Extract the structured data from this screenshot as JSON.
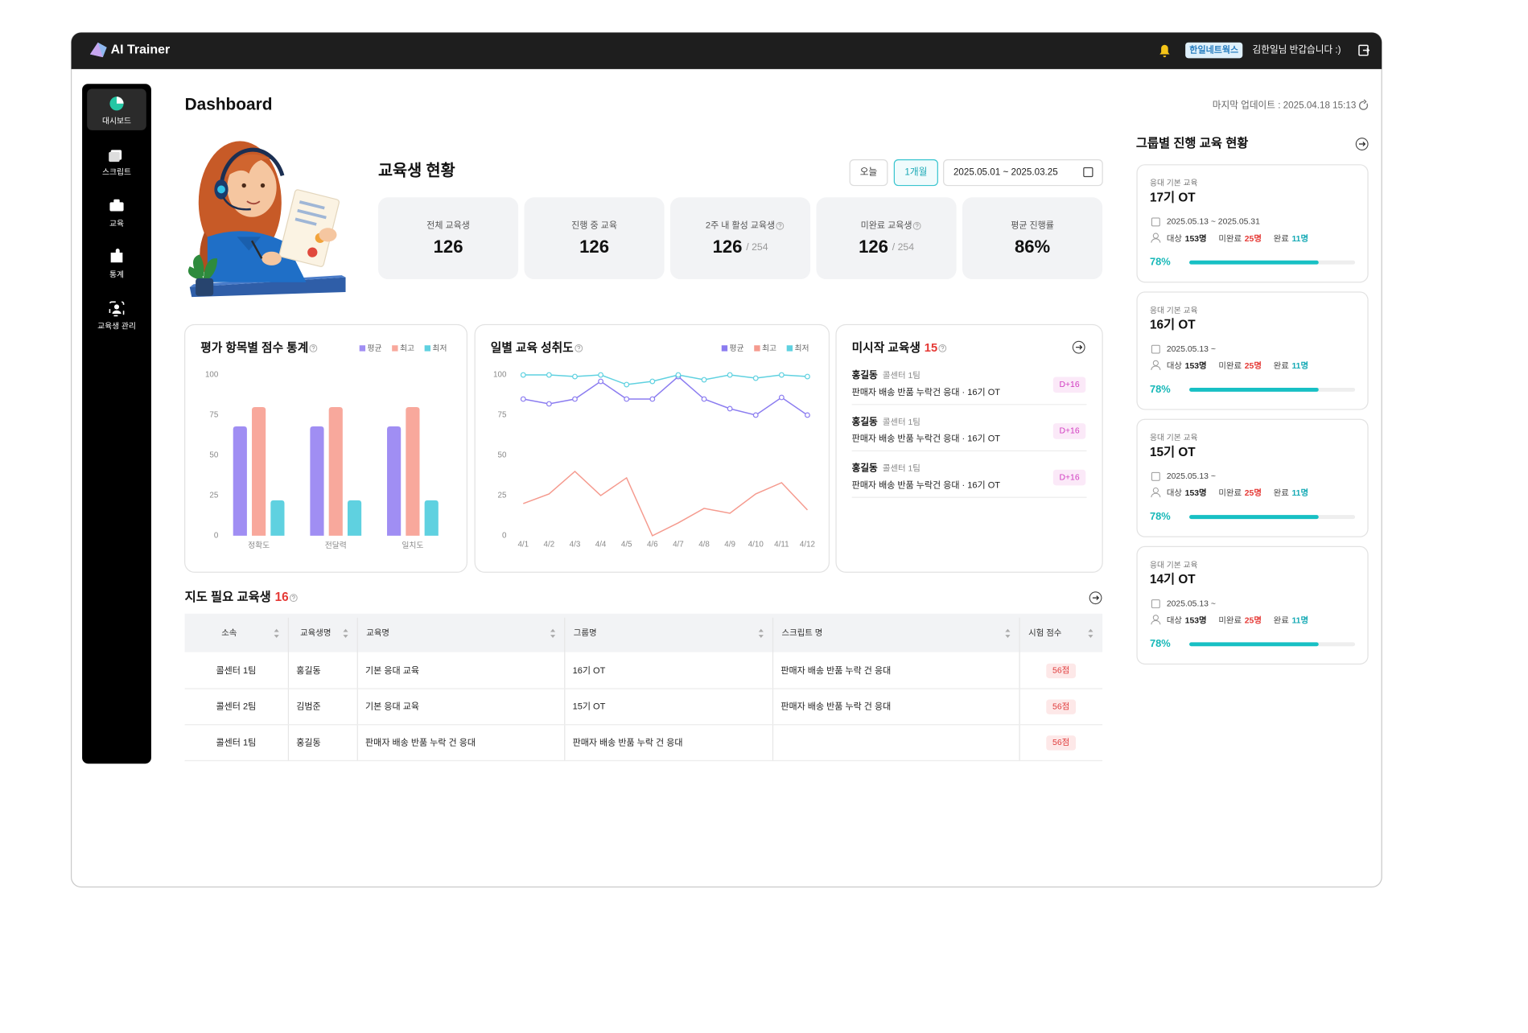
{
  "header": {
    "brand": "AI Trainer",
    "company": "한일네트웍스",
    "greeting": "김한일님 반갑습니다 :)"
  },
  "sidebar": {
    "items": [
      "대시보드",
      "스크립트",
      "교육",
      "통계",
      "교육생 관리"
    ]
  },
  "page": {
    "title": "Dashboard",
    "last_update": "마지막 업데이트 : 2025.04.18 15:13"
  },
  "status": {
    "title": "교육생 현황",
    "filters": [
      "오늘",
      "1개월"
    ],
    "date_range": "2025.05.01 ~ 2025.03.25",
    "cards": [
      {
        "label": "전체 교육생",
        "value": "126"
      },
      {
        "label": "진행 중 교육",
        "value": "126"
      },
      {
        "label": "2주 내 활성 교육생",
        "value": "126",
        "total": "/ 254"
      },
      {
        "label": "미완료 교육생",
        "value": "126",
        "total": "/ 254"
      },
      {
        "label": "평균 진행률",
        "value": "86%"
      }
    ]
  },
  "score_chart": {
    "type": "bar",
    "title": "평가 항목별 점수 통계",
    "categories": [
      "정확도",
      "전달력",
      "일치도"
    ],
    "series": [
      {
        "name": "평균",
        "color": "#a08ef3",
        "values": [
          68,
          68,
          68
        ]
      },
      {
        "name": "최고",
        "color": "#f8a89c",
        "values": [
          80,
          80,
          80
        ]
      },
      {
        "name": "최저",
        "color": "#5fd1e0",
        "values": [
          22,
          22,
          22
        ]
      }
    ],
    "ylim": [
      0,
      100
    ],
    "yticks": [
      0,
      25,
      50,
      75,
      100
    ]
  },
  "daily_chart": {
    "type": "line",
    "title": "일별 교육 성취도",
    "categories": [
      "4/1",
      "4/2",
      "4/3",
      "4/4",
      "4/5",
      "4/6",
      "4/7",
      "4/8",
      "4/9",
      "4/10",
      "4/11",
      "4/12"
    ],
    "series": [
      {
        "name": "평균",
        "color": "#8b7cf0",
        "marker": true,
        "values": [
          85,
          82,
          85,
          96,
          85,
          85,
          99,
          85,
          79,
          75,
          86,
          75
        ]
      },
      {
        "name": "최고",
        "color": "#f59a8e",
        "marker": false,
        "values": [
          20,
          26,
          40,
          25,
          36,
          0,
          8,
          17,
          14,
          26,
          33,
          16
        ]
      },
      {
        "name": "최저",
        "color": "#5fd1e0",
        "marker": true,
        "values": [
          100,
          100,
          99,
          100,
          94,
          96,
          100,
          97,
          100,
          98,
          100,
          99
        ]
      }
    ],
    "ylim": [
      0,
      100
    ],
    "yticks": [
      0,
      25,
      50,
      75,
      100
    ]
  },
  "unstarted": {
    "title": "미시작 교육생",
    "count": "15",
    "items": [
      {
        "name": "홍길동",
        "team": "콜센터 1팀",
        "desc": "판매자 배송 반품 누락건 응대 · 16기 OT",
        "badge": "D+16"
      },
      {
        "name": "홍길동",
        "team": "콜센터 1팀",
        "desc": "판매자 배송 반품 누락건 응대 · 16기 OT",
        "badge": "D+16"
      },
      {
        "name": "홍길동",
        "team": "콜센터 1팀",
        "desc": "판매자 배송 반품 누락건 응대 · 16기 OT",
        "badge": "D+16"
      }
    ]
  },
  "table": {
    "title": "지도 필요 교육생",
    "count": "16",
    "columns": [
      "소속",
      "교육생명",
      "교육명",
      "그룹명",
      "스크립트 명",
      "시험 점수"
    ],
    "rows": [
      [
        "콜센터 1팀",
        "홍길동",
        "기본 응대 교육",
        "16기 OT",
        "판매자 배송 반품 누락 건 응대",
        "56점"
      ],
      [
        "콜센터 2팀",
        "김범준",
        "기본 응대 교육",
        "15기 OT",
        "판매자 배송 반품 누락 건 응대",
        "56점"
      ],
      [
        "콜센터 1팀",
        "홍길동",
        "판매자 배송 반품 누락 건 응대",
        "판매자 배송 반품 누락 건 응대",
        null,
        "56점"
      ]
    ]
  },
  "groups": {
    "title": "그룹별 진행 교육 현황",
    "labels": {
      "target": "대상",
      "incomplete": "미완료",
      "complete": "완료"
    },
    "cards": [
      {
        "category": "응대 기본 교육",
        "name": "17기 OT",
        "period": "2025.05.13 ~ 2025.05.31",
        "target": "153명",
        "incomplete": "25명",
        "complete": "11명",
        "progress": {
          "value": 78,
          "label": "78%"
        }
      },
      {
        "category": "응대 기본 교육",
        "name": "16기 OT",
        "period": "2025.05.13 ~",
        "target": "153명",
        "incomplete": "25명",
        "complete": "11명",
        "progress": {
          "value": 78,
          "label": "78%"
        }
      },
      {
        "category": "응대 기본 교육",
        "name": "15기 OT",
        "period": "2025.05.13 ~",
        "target": "153명",
        "incomplete": "25명",
        "complete": "11명",
        "progress": {
          "value": 78,
          "label": "78%"
        }
      },
      {
        "category": "응대 기본 교육",
        "name": "14기 OT",
        "period": "2025.05.13 ~",
        "target": "153명",
        "incomplete": "25명",
        "complete": "11명",
        "progress": {
          "value": 78,
          "label": "78%"
        }
      }
    ]
  }
}
